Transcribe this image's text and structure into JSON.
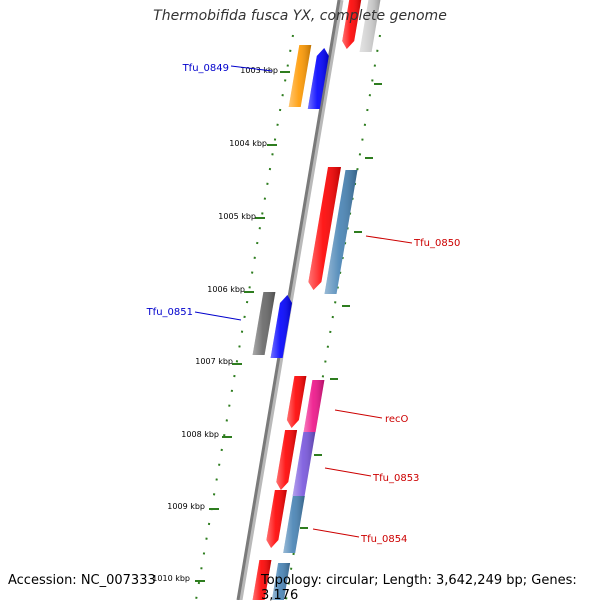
{
  "title": "Thermobifida fusca YX, complete genome",
  "accession": "Accession: NC_007333",
  "topology": "Topology: circular; Length: 3,642,249 bp; Genes: 3,176",
  "colors": {
    "backbone": "#7a7a7a",
    "tick": "#2e7d1f",
    "forward_label": "#0000cc",
    "reverse_label": "#cc0000"
  },
  "ticks": [
    {
      "label": "1003 kbp"
    },
    {
      "label": "1004 kbp"
    },
    {
      "label": "1005 kbp"
    },
    {
      "label": "1006 kbp"
    },
    {
      "label": "1007 kbp"
    },
    {
      "label": "1008 kbp"
    },
    {
      "label": "1009 kbp"
    },
    {
      "label": "1010 kbp"
    }
  ],
  "gene_labels": [
    {
      "text": "Tfu_0849",
      "strand": "forward"
    },
    {
      "text": "Tfu_0850",
      "strand": "reverse"
    },
    {
      "text": "Tfu_0851",
      "strand": "forward"
    },
    {
      "text": "recO",
      "strand": "reverse"
    },
    {
      "text": "Tfu_0853",
      "strand": "reverse"
    },
    {
      "text": "Tfu_0854",
      "strand": "reverse"
    }
  ],
  "features": [
    {
      "name": "gene-tfu0849-orange",
      "color": "#ff9900"
    },
    {
      "name": "cds-tfu0849-blue",
      "color": "#0000ff"
    },
    {
      "name": "gene-tfu0850-red",
      "color": "#ff0000"
    },
    {
      "name": "cds-tfu0850-steelblue",
      "color": "#4682b4"
    },
    {
      "name": "gene-tfu0851-gray",
      "color": "#666666"
    },
    {
      "name": "cds-tfu0851-blue",
      "color": "#0000ff"
    },
    {
      "name": "gene-reco-red",
      "color": "#ff0000"
    },
    {
      "name": "cds-reco-magenta",
      "color": "#ee1188"
    },
    {
      "name": "gene-tfu0853-red",
      "color": "#ff0000"
    },
    {
      "name": "cds-tfu0853-purple",
      "color": "#7755dd"
    },
    {
      "name": "gene-tfu0854-red",
      "color": "#ff0000"
    },
    {
      "name": "cds-tfu0854-steelblue",
      "color": "#4682b4"
    },
    {
      "name": "gene-top-red",
      "color": "#ff0000"
    },
    {
      "name": "gene-top-lightgray",
      "color": "#cccccc"
    },
    {
      "name": "gene-bottom-red",
      "color": "#ff0000"
    },
    {
      "name": "cds-bottom-steelblue",
      "color": "#4682b4"
    }
  ]
}
